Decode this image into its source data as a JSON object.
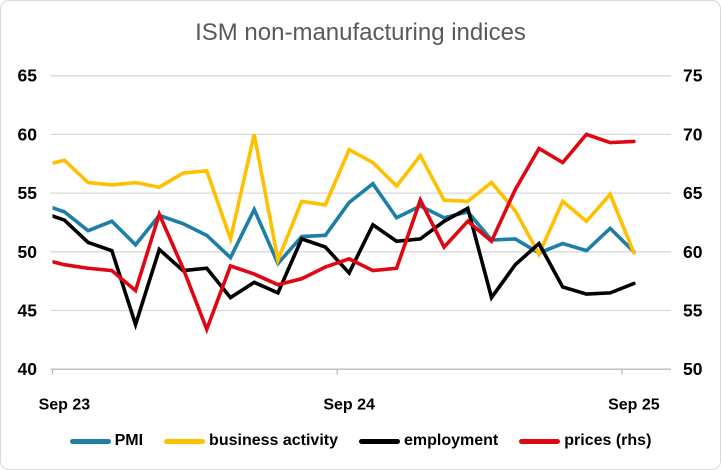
{
  "chart": {
    "title_color": "#595959",
    "background_color": "#ffffff",
    "frame_border_color": "#d9d9d9",
    "grid_color": "#d9d9d9",
    "axis_line_color": "#bfbfbf"
  },
  "chart_data": {
    "type": "line",
    "title": "ISM non-manufacturing indices",
    "x": [
      "Aug 23",
      "Sep 23",
      "Oct 23",
      "Nov 23",
      "Dec 23",
      "Jan 24",
      "Feb 24",
      "Mar 24",
      "Apr 24",
      "May 24",
      "Jun 24",
      "Jul 24",
      "Aug 24",
      "Sep 24",
      "Oct 24",
      "Nov 24",
      "Dec 24",
      "Jan 25",
      "Feb 25",
      "Mar 25",
      "Apr 25",
      "May 25",
      "Jun 25",
      "Jul 25",
      "Aug 25",
      "Sep 25"
    ],
    "x_note": "monthly data; first point (Aug 23) lies outside the axis and its segment is clipped at the left plot edge; one empty slot after Sep 25",
    "xticks": [
      {
        "label": "Sep 23",
        "month_index": 1
      },
      {
        "label": "Sep 24",
        "month_index": 13
      },
      {
        "label": "Sep 25",
        "month_index": 25
      }
    ],
    "left_axis": {
      "min": 40,
      "max": 65,
      "ticks": [
        65,
        60,
        55,
        50,
        45,
        40
      ]
    },
    "right_axis": {
      "min": 50,
      "max": 75,
      "ticks": [
        75,
        70,
        65,
        60,
        55,
        50
      ],
      "offset_from_left": 10
    },
    "grid": "horizontal",
    "legend_position": "bottom",
    "series": [
      {
        "name": "PMI",
        "color": "#1E7EA6",
        "axis": "left",
        "values": [
          54.1,
          53.4,
          51.8,
          52.6,
          50.6,
          53.1,
          52.4,
          51.4,
          49.5,
          53.6,
          49.0,
          51.3,
          51.4,
          54.2,
          55.8,
          52.9,
          53.9,
          52.9,
          53.4,
          51.0,
          51.1,
          49.9,
          50.7,
          50.1,
          52.0,
          50.0
        ]
      },
      {
        "name": "business activity",
        "color": "#FFC000",
        "axis": "left",
        "values": [
          57.3,
          57.8,
          55.9,
          55.7,
          55.9,
          55.5,
          56.7,
          56.9,
          51.1,
          60.0,
          49.3,
          54.3,
          54.0,
          58.7,
          57.6,
          55.6,
          58.2,
          54.4,
          54.3,
          55.9,
          53.5,
          49.8,
          54.3,
          52.6,
          54.9,
          49.9
        ]
      },
      {
        "name": "employment",
        "color": "#000000",
        "axis": "left",
        "values": [
          53.4,
          52.7,
          50.8,
          50.1,
          43.8,
          50.2,
          48.4,
          48.6,
          46.1,
          47.4,
          46.5,
          51.1,
          50.4,
          48.2,
          52.3,
          50.9,
          51.1,
          52.6,
          53.7,
          46.1,
          48.9,
          50.7,
          47.0,
          46.4,
          46.5,
          47.3
        ]
      },
      {
        "name": "prices (rhs)",
        "color": "#E00713",
        "axis": "right",
        "values": [
          59.4,
          58.9,
          58.6,
          58.4,
          56.7,
          63.2,
          58.6,
          53.4,
          58.8,
          58.1,
          57.2,
          57.7,
          58.7,
          59.4,
          58.4,
          58.6,
          64.4,
          60.4,
          62.6,
          60.9,
          65.3,
          68.8,
          67.6,
          70.0,
          69.3,
          69.4
        ]
      }
    ]
  }
}
